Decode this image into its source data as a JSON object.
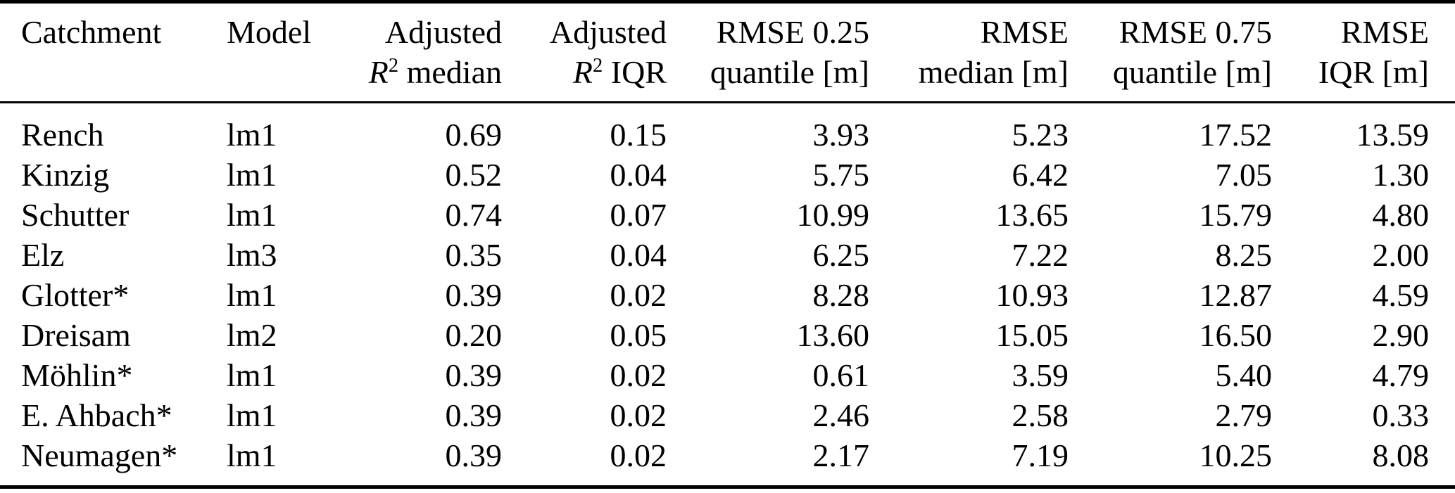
{
  "colors": {
    "background": "#ffffff",
    "text": "#000000",
    "rule": "#000000"
  },
  "table": {
    "columns": [
      {
        "id": "catchment",
        "line1": [
          {
            "t": "Catchment"
          }
        ],
        "line2": []
      },
      {
        "id": "model",
        "line1": [
          {
            "t": "Model"
          }
        ],
        "line2": []
      },
      {
        "id": "adj-r2-median",
        "line1": [
          {
            "t": "Adjusted"
          }
        ],
        "line2": [
          {
            "t": "R",
            "style": "italic"
          },
          {
            "t": "2",
            "style": "sup"
          },
          {
            "t": " median"
          }
        ]
      },
      {
        "id": "adj-r2-iqr",
        "line1": [
          {
            "t": "Adjusted"
          }
        ],
        "line2": [
          {
            "t": "R",
            "style": "italic"
          },
          {
            "t": "2",
            "style": "sup"
          },
          {
            "t": " IQR"
          }
        ]
      },
      {
        "id": "rmse-q25",
        "line1": [
          {
            "t": "RMSE 0.25"
          }
        ],
        "line2": [
          {
            "t": "quantile [m]"
          }
        ]
      },
      {
        "id": "rmse-median",
        "line1": [
          {
            "t": "RMSE"
          }
        ],
        "line2": [
          {
            "t": "median [m]"
          }
        ]
      },
      {
        "id": "rmse-q75",
        "line1": [
          {
            "t": "RMSE 0.75"
          }
        ],
        "line2": [
          {
            "t": "quantile [m]"
          }
        ]
      },
      {
        "id": "rmse-iqr",
        "line1": [
          {
            "t": "RMSE"
          }
        ],
        "line2": [
          {
            "t": "IQR [m]"
          }
        ]
      }
    ],
    "rows": [
      {
        "cells": [
          "Rench",
          "lm1",
          "0.69",
          "0.15",
          "3.93",
          "5.23",
          "17.52",
          "13.59"
        ]
      },
      {
        "cells": [
          "Kinzig",
          "lm1",
          "0.52",
          "0.04",
          "5.75",
          "6.42",
          "7.05",
          "1.30"
        ]
      },
      {
        "cells": [
          "Schutter",
          "lm1",
          "0.74",
          "0.07",
          "10.99",
          "13.65",
          "15.79",
          "4.80"
        ]
      },
      {
        "cells": [
          "Elz",
          "lm3",
          "0.35",
          "0.04",
          "6.25",
          "7.22",
          "8.25",
          "2.00"
        ]
      },
      {
        "cells": [
          "Glotter*",
          "lm1",
          "0.39",
          "0.02",
          "8.28",
          "10.93",
          "12.87",
          "4.59"
        ]
      },
      {
        "cells": [
          "Dreisam",
          "lm2",
          "0.20",
          "0.05",
          "13.60",
          "15.05",
          "16.50",
          "2.90"
        ]
      },
      {
        "cells": [
          "Möhlin*",
          "lm1",
          "0.39",
          "0.02",
          "0.61",
          "3.59",
          "5.40",
          "4.79"
        ]
      },
      {
        "cells": [
          "E. Ahbach*",
          "lm1",
          "0.39",
          "0.02",
          "2.46",
          "2.58",
          "2.79",
          "0.33"
        ]
      },
      {
        "cells": [
          "Neumagen*",
          "lm1",
          "0.39",
          "0.02",
          "2.17",
          "7.19",
          "10.25",
          "8.08"
        ]
      }
    ]
  }
}
